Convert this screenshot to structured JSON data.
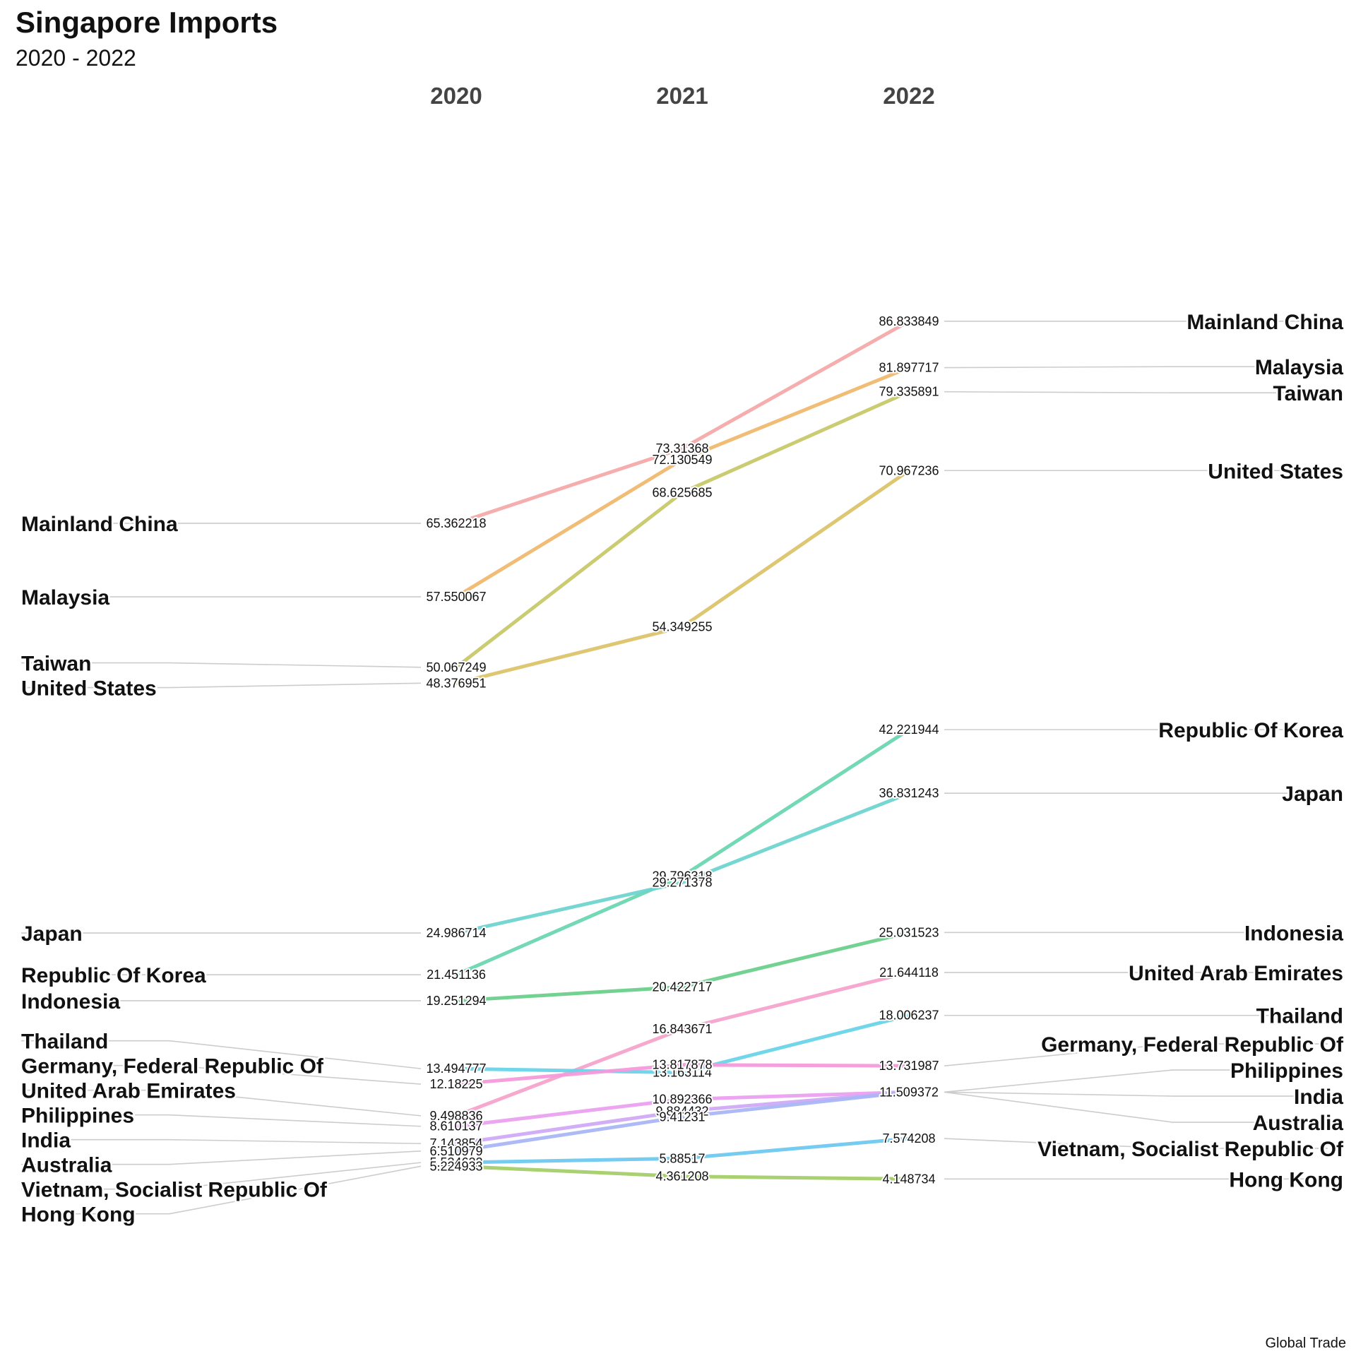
{
  "title": "Singapore Imports",
  "subtitle": "2020 - 2022",
  "caption": "Global Trade",
  "chart_data": {
    "type": "slope",
    "years": [
      "2020",
      "2021",
      "2022"
    ],
    "panels": [
      {
        "series": [
          {
            "name": "Mainland China",
            "color": "#F5A9A9",
            "values": [
              65.362218,
              73.31368,
              86.833849
            ]
          },
          {
            "name": "Malaysia",
            "color": "#F0B86E",
            "values": [
              57.550067,
              72.130549,
              81.897717
            ]
          },
          {
            "name": "Taiwan",
            "color": "#C8C86A",
            "values": [
              50.067249,
              68.625685,
              79.335891
            ]
          },
          {
            "name": "United States",
            "color": "#DCC46A",
            "values": [
              48.376951,
              54.349255,
              70.967236
            ]
          }
        ]
      },
      {
        "series": [
          {
            "name": "Republic Of Korea",
            "color": "#6CD6B0",
            "values": [
              21.451136,
              29.796318,
              42.221944
            ]
          },
          {
            "name": "Japan",
            "color": "#6FD4D0",
            "values": [
              24.986714,
              29.271378,
              36.831243
            ]
          },
          {
            "name": "Indonesia",
            "color": "#6CD08C",
            "values": [
              19.251294,
              20.422717,
              25.031523
            ]
          },
          {
            "name": "United Arab Emirates",
            "color": "#F7A3CC",
            "values": [
              9.498836,
              16.843671,
              21.644118
            ]
          },
          {
            "name": "Thailand",
            "color": "#69D4E8",
            "values": [
              13.494777,
              13.163114,
              18.006237
            ]
          },
          {
            "name": "Germany, Federal Republic Of",
            "color": "#F49ADB",
            "values": [
              12.18225,
              13.817878,
              13.731987
            ]
          },
          {
            "name": "Philippines",
            "color": "#EBA0F0",
            "values": [
              8.610137,
              10.892366,
              11.509372
            ]
          },
          {
            "name": "India",
            "color": "#D0AAF5",
            "values": [
              7.143854,
              9.884432,
              11.509372
            ]
          },
          {
            "name": "Australia",
            "color": "#A9B6F5",
            "values": [
              6.510979,
              9.41231,
              11.509372
            ]
          },
          {
            "name": "Vietnam, Socialist Republic Of",
            "color": "#6FC8F0",
            "values": [
              5.534632,
              5.88517,
              7.574208
            ]
          },
          {
            "name": "Hong Kong",
            "color": "#A4CF6A",
            "values": [
              5.224933,
              4.361208,
              4.148734
            ]
          }
        ]
      }
    ]
  }
}
